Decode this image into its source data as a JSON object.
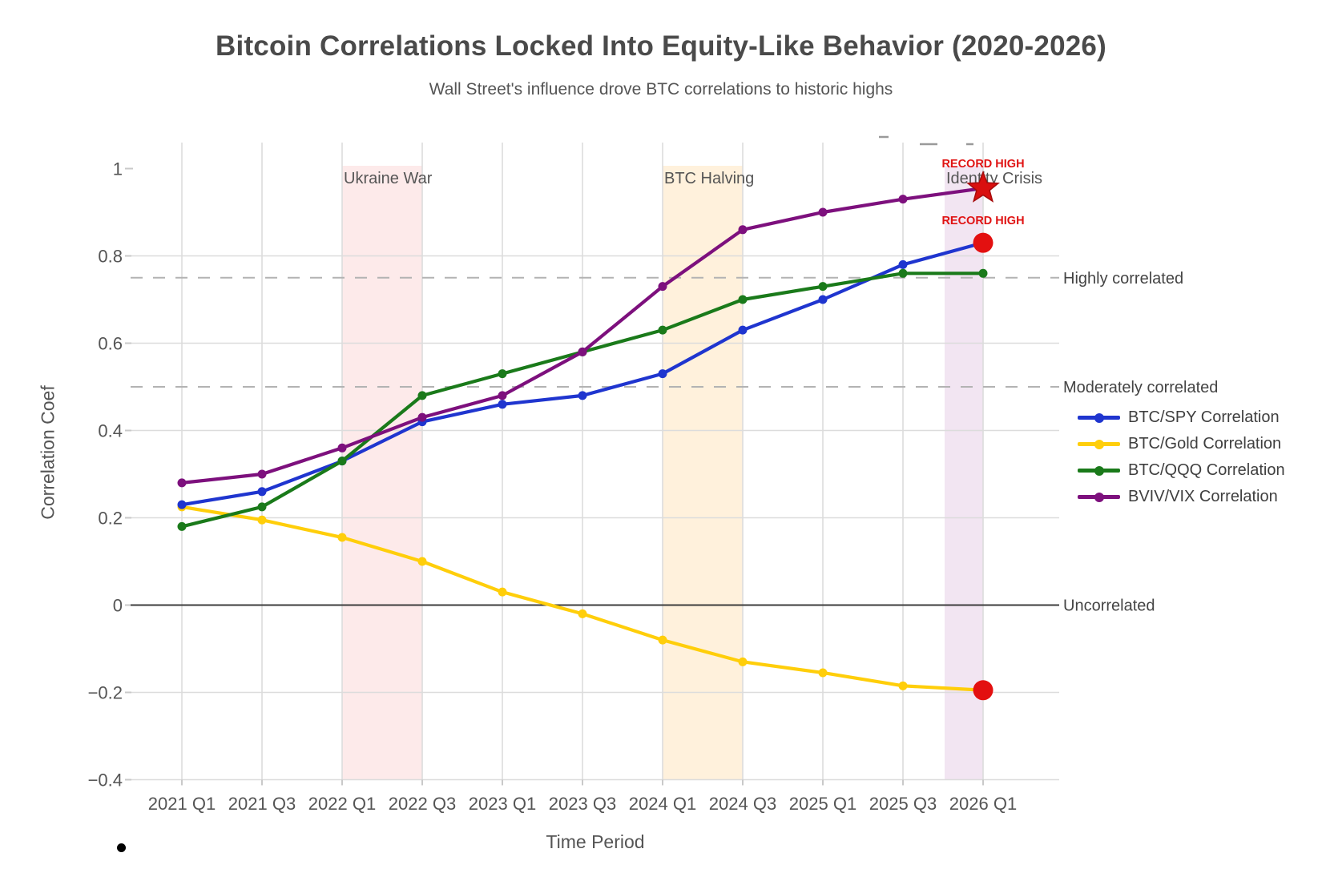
{
  "header": {
    "title": "Bitcoin Correlations Locked Into Equity-Like Behavior (2020-2026)",
    "subtitle": "Wall Street's influence drove BTC correlations to historic highs"
  },
  "chart_data": {
    "type": "line",
    "xlabel": "Time Period",
    "ylabel": "Correlation Coef",
    "categories": [
      "2021 Q1",
      "2021 Q3",
      "2022 Q1",
      "2022 Q3",
      "2023 Q1",
      "2023 Q3",
      "2024 Q1",
      "2024 Q3",
      "2025 Q1",
      "2025 Q3",
      "2026 Q1"
    ],
    "series": [
      {
        "name": "BTC/Gold Correlation",
        "color": "#ffce0a",
        "values": [
          0.225,
          0.195,
          0.155,
          0.1,
          0.03,
          -0.02,
          -0.08,
          -0.13,
          -0.155,
          -0.185,
          -0.195
        ],
        "end_marker": "red-circle"
      },
      {
        "name": "BTC/SPY Correlation",
        "color": "#1f35cf",
        "values": [
          0.23,
          0.26,
          0.33,
          0.42,
          0.46,
          0.48,
          0.53,
          0.63,
          0.7,
          0.78,
          0.83
        ],
        "end_marker": "red-circle",
        "end_label": "RECORD HIGH"
      },
      {
        "name": "BTC/QQQ Correlation",
        "color": "#1a7a1a",
        "values": [
          0.18,
          0.225,
          0.33,
          0.48,
          0.53,
          0.58,
          0.63,
          0.7,
          0.73,
          0.76,
          0.76
        ]
      },
      {
        "name": "BVIV/VIX Correlation",
        "color": "#7d107d",
        "values": [
          0.28,
          0.3,
          0.36,
          0.43,
          0.48,
          0.58,
          0.73,
          0.86,
          0.9,
          0.93,
          0.955
        ],
        "end_marker": "red-star",
        "end_label": "RECORD HIGH"
      }
    ],
    "legend_order": [
      "BTC/SPY Correlation",
      "BTC/Gold Correlation",
      "BTC/QQQ Correlation",
      "BVIV/VIX Correlation"
    ],
    "ylim": [
      -0.4,
      1.06
    ],
    "y_ticks": [
      {
        "value": 1,
        "label": "1"
      },
      {
        "value": 0.8,
        "label": "0.8"
      },
      {
        "value": 0.6,
        "label": "0.6"
      },
      {
        "value": 0.4,
        "label": "0.4"
      },
      {
        "value": 0.2,
        "label": "0.2"
      },
      {
        "value": 0,
        "label": "0"
      },
      {
        "value": -0.2,
        "label": "−0.2"
      },
      {
        "value": -0.4,
        "label": "−0.4"
      }
    ],
    "reference_lines": [
      {
        "value": 0.75,
        "label": "Highly correlated",
        "style": "dashed"
      },
      {
        "value": 0.5,
        "label": "Moderately correlated",
        "style": "dashed"
      },
      {
        "value": 0,
        "label": "Uncorrelated",
        "style": "solid"
      }
    ],
    "bands": [
      {
        "label": "Ukraine War",
        "from_index": 2,
        "to_index": 3,
        "color": "rgba(239,83,80,0.12)"
      },
      {
        "label": "BTC Halving",
        "from_index": 6,
        "to_index": 7,
        "color": "rgba(255,167,38,0.16)"
      },
      {
        "label": "Identity Crisis",
        "from_index": 9.52,
        "to_index": 10,
        "color": "rgba(128,0,128,0.10)"
      }
    ],
    "annotation_color": "#e01313",
    "grid": true,
    "legend_position": "right"
  }
}
